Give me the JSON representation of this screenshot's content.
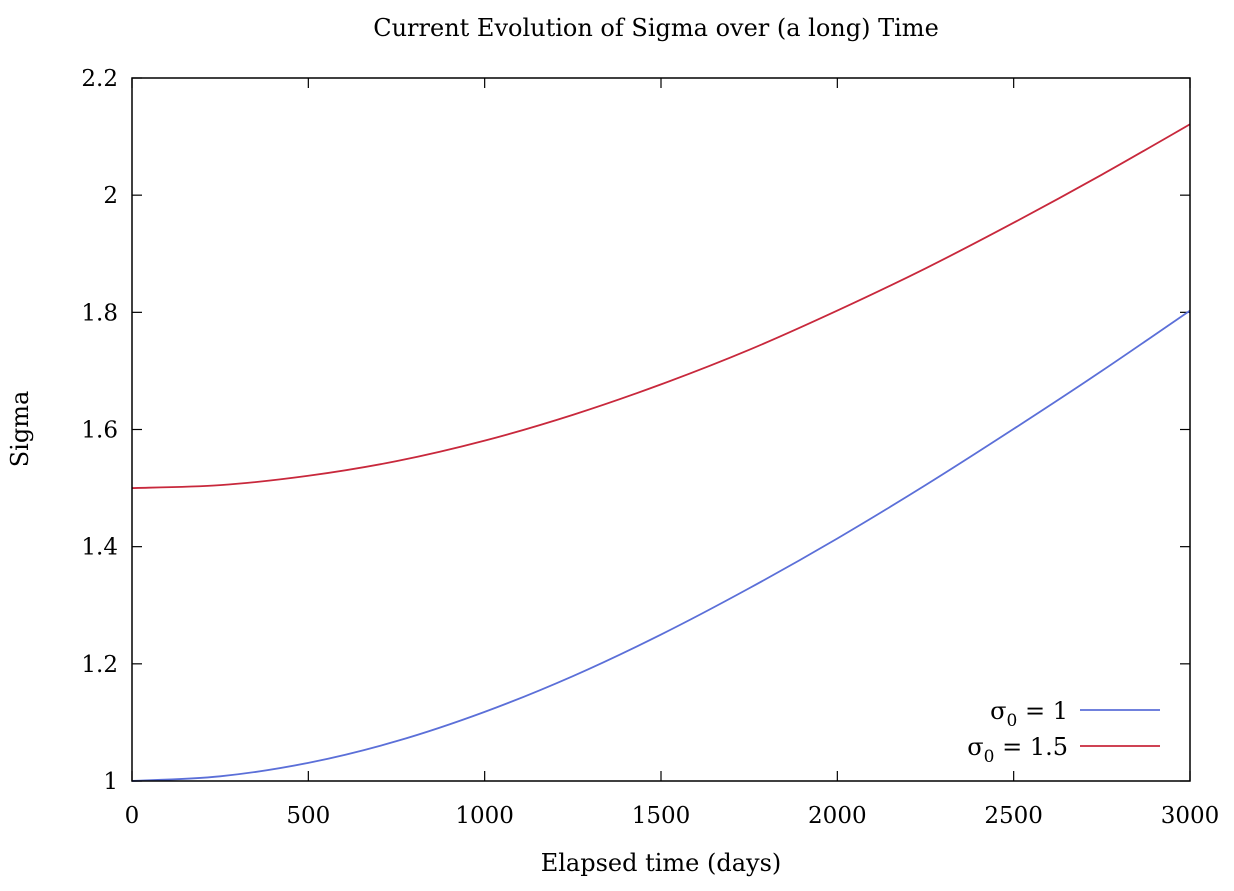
{
  "chart_data": {
    "type": "line",
    "title": "Current Evolution of Sigma over (a long) Time",
    "xlabel": "Elapsed time (days)",
    "ylabel": "Sigma",
    "xlim": [
      0,
      3000
    ],
    "ylim": [
      1,
      2.2
    ],
    "x_ticks": [
      "0",
      "500",
      "1000",
      "1500",
      "2000",
      "2500",
      "3000"
    ],
    "y_ticks": [
      "1",
      "1.2",
      "1.4",
      "1.6",
      "1.8",
      "2",
      "2.2"
    ],
    "grid": false,
    "legend_position": "bottom-right",
    "series": [
      {
        "name": "σ0 = 1",
        "legend_main": "σ",
        "legend_sub": "0",
        "legend_rest": " = 1",
        "color": "#5b6fd8",
        "x": [
          0,
          250,
          500,
          750,
          1000,
          1250,
          1500,
          1750,
          2000,
          2250,
          2500,
          2750,
          3000
        ],
        "y": [
          1.0,
          1.008,
          1.031,
          1.068,
          1.118,
          1.179,
          1.25,
          1.329,
          1.414,
          1.505,
          1.601,
          1.7,
          1.803
        ]
      },
      {
        "name": "σ0 = 1.5",
        "legend_main": "σ",
        "legend_sub": "0",
        "legend_rest": " = 1.5",
        "color": "#c8283c",
        "x": [
          0,
          250,
          500,
          750,
          1000,
          1250,
          1500,
          1750,
          2000,
          2250,
          2500,
          2750,
          3000
        ],
        "y": [
          1.5,
          1.505,
          1.521,
          1.546,
          1.581,
          1.625,
          1.677,
          1.736,
          1.803,
          1.875,
          1.953,
          2.035,
          2.121
        ]
      }
    ]
  }
}
